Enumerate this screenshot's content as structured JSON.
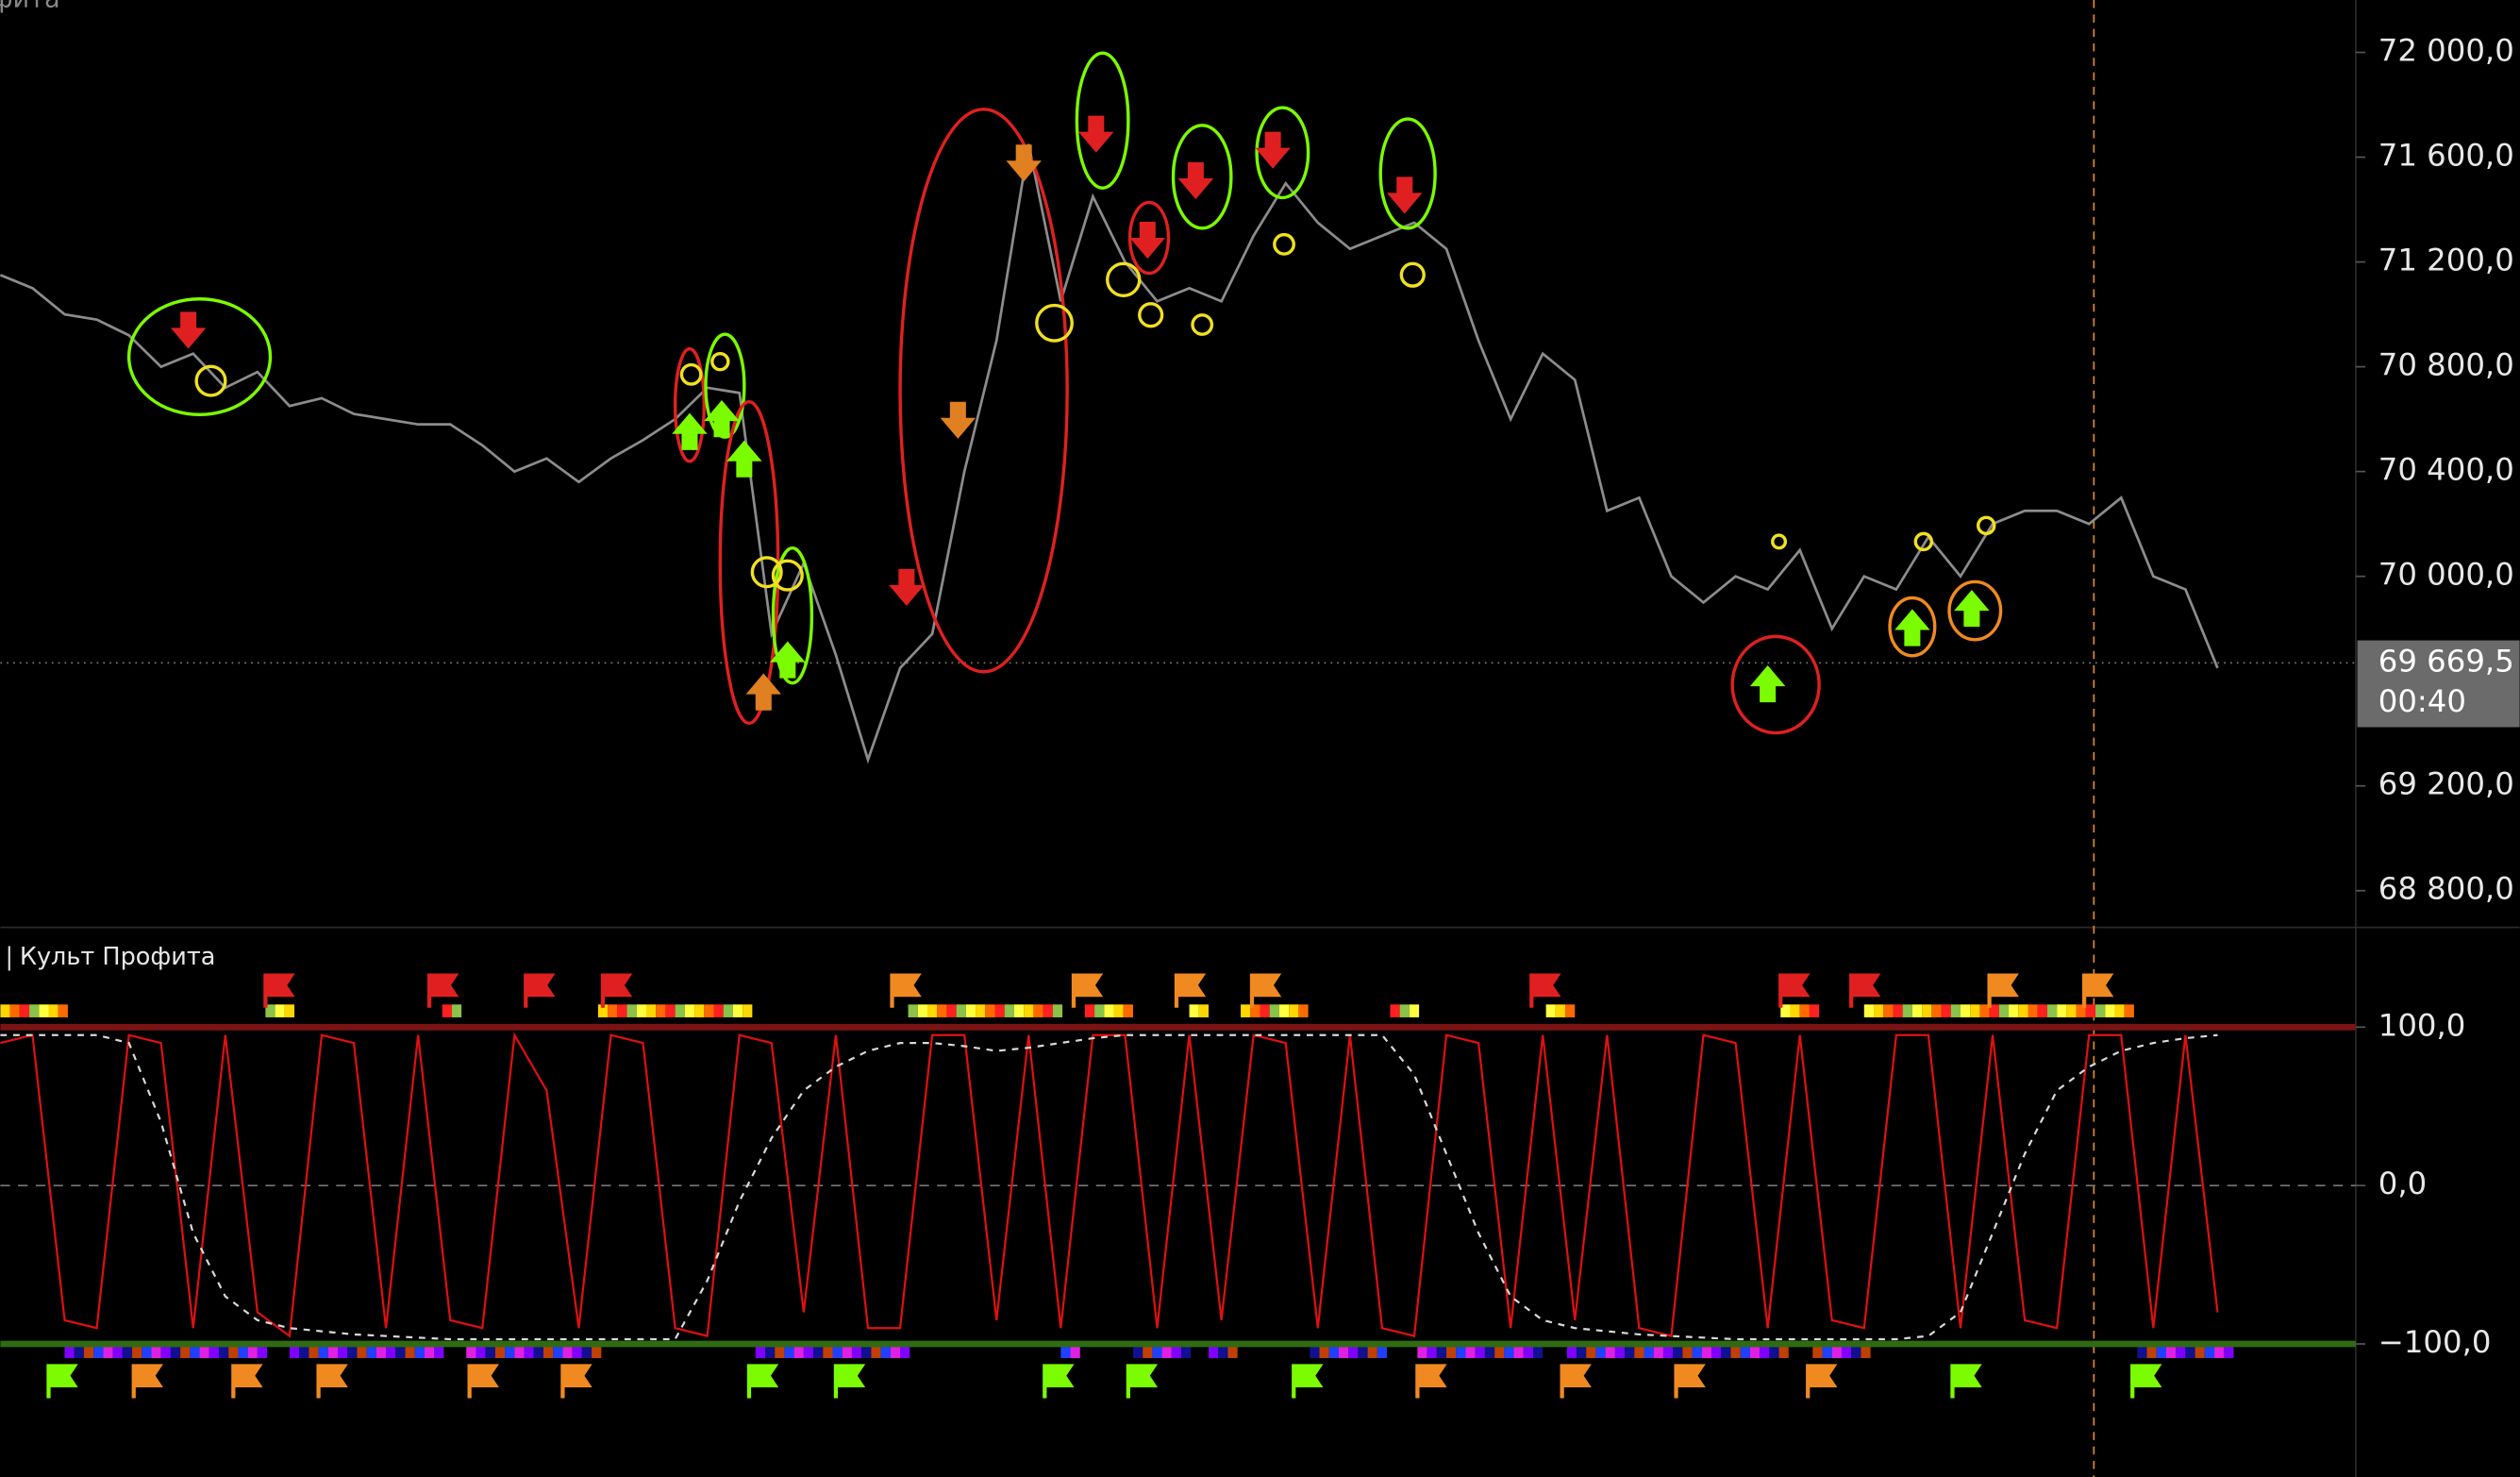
{
  "chart_data": [
    {
      "type": "line",
      "title": "фита",
      "series": [
        {
          "color": "#8c8c8c",
          "values": [
            71150,
            71100,
            71000,
            70980,
            70920,
            70800,
            70850,
            70720,
            70780,
            70650,
            70680,
            70620,
            70600,
            70580,
            70580,
            70500,
            70400,
            70450,
            70360,
            70450,
            70520,
            70600,
            70720,
            70700,
            69780,
            70050,
            69700,
            69300,
            69650,
            69780,
            70400,
            70900,
            71650,
            71050,
            71450,
            71200,
            71050,
            71100,
            71050,
            71300,
            71500,
            71350,
            71250,
            71300,
            71350,
            71250,
            70900,
            70600,
            70850,
            70750,
            70250,
            70300,
            70000,
            69900,
            70000,
            69950,
            70100,
            69800,
            70000,
            69950,
            70150,
            70000,
            70200,
            70250,
            70250,
            70200,
            70300,
            70000,
            69950,
            69650
          ]
        }
      ],
      "ylim": [
        68660,
        72200
      ],
      "yticks": [
        {
          "value": 72000,
          "label": "72 000,0"
        },
        {
          "value": 71600,
          "label": "71 600,0"
        },
        {
          "value": 71200,
          "label": "71 200,0"
        },
        {
          "value": 70800,
          "label": "70 800,0"
        },
        {
          "value": 70400,
          "label": "70 400,0"
        },
        {
          "value": 70000,
          "label": "70 000,0"
        },
        {
          "value": 69200,
          "label": "69 200,0"
        },
        {
          "value": 68800,
          "label": "68 800,0"
        }
      ],
      "last_price": {
        "value": 69669.5,
        "label": "69 669,5"
      },
      "countdown": "00:40"
    },
    {
      "type": "line",
      "title": "Культ Профита",
      "series": [
        {
          "color": "#e01010",
          "values": [
            90,
            95,
            -85,
            -90,
            95,
            90,
            -90,
            95,
            -80,
            -95,
            95,
            90,
            -90,
            95,
            -85,
            -90,
            95,
            60,
            -90,
            95,
            90,
            -90,
            -95,
            95,
            90,
            -80,
            95,
            -90,
            -90,
            95,
            95,
            -85,
            95,
            -90,
            95,
            95,
            -90,
            95,
            -85,
            95,
            90,
            -90,
            95,
            -90,
            -95,
            95,
            90,
            -90,
            95,
            -85,
            95,
            -90,
            -95,
            95,
            90,
            -90,
            95,
            -85,
            -90,
            95,
            95,
            -90,
            95,
            -85,
            -90,
            95,
            95,
            -90,
            95,
            -80
          ]
        },
        {
          "color": "#d8d8d8",
          "dash": true,
          "values": [
            95,
            95,
            95,
            95,
            90,
            40,
            -30,
            -70,
            -85,
            -90,
            -92,
            -94,
            -95,
            -96,
            -97,
            -97,
            -97,
            -97,
            -97,
            -97,
            -97,
            -97,
            -60,
            -10,
            30,
            60,
            75,
            85,
            90,
            90,
            88,
            85,
            87,
            90,
            93,
            95,
            95,
            95,
            95,
            95,
            95,
            95,
            95,
            95,
            70,
            20,
            -30,
            -70,
            -85,
            -90,
            -92,
            -94,
            -95,
            -96,
            -97,
            -97,
            -97,
            -97,
            -97,
            -97,
            -95,
            -80,
            -30,
            20,
            60,
            75,
            85,
            90,
            93,
            95
          ]
        }
      ],
      "ylim": [
        -184,
        163
      ],
      "yticks": [
        {
          "value": 100,
          "label": "100,0"
        },
        {
          "value": 0,
          "label": "0,0"
        },
        {
          "value": -100,
          "label": "−100,0"
        }
      ],
      "grid": true
    }
  ]
}
